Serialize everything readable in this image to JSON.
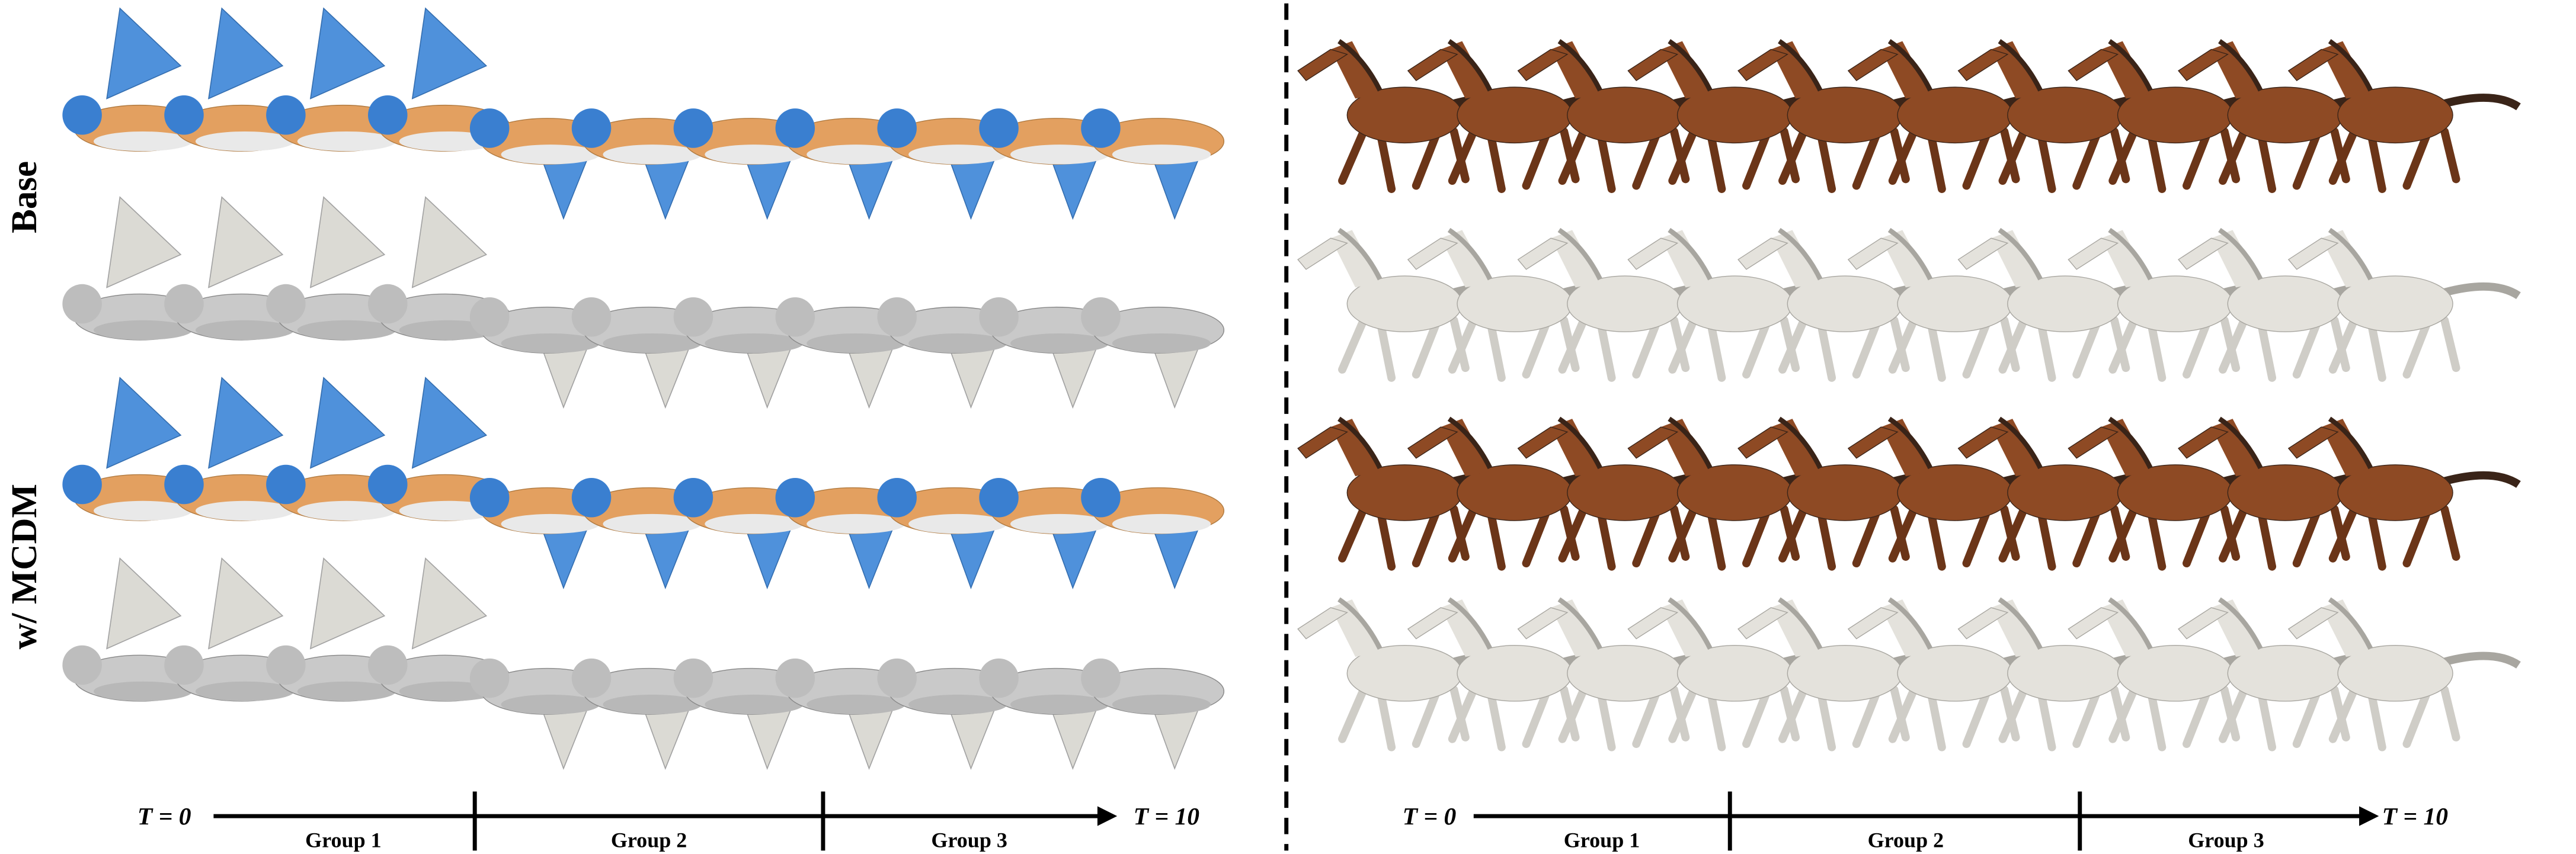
{
  "row_labels": [
    "Base",
    "w/ MCDM"
  ],
  "timelines": [
    {
      "start": "T = 0",
      "end": "T = 10",
      "groups": [
        "Group 1",
        "Group 2",
        "Group 3"
      ]
    },
    {
      "start": "T = 0",
      "end": "T = 10",
      "groups": [
        "Group 1",
        "Group 2",
        "Group 3"
      ]
    }
  ]
}
